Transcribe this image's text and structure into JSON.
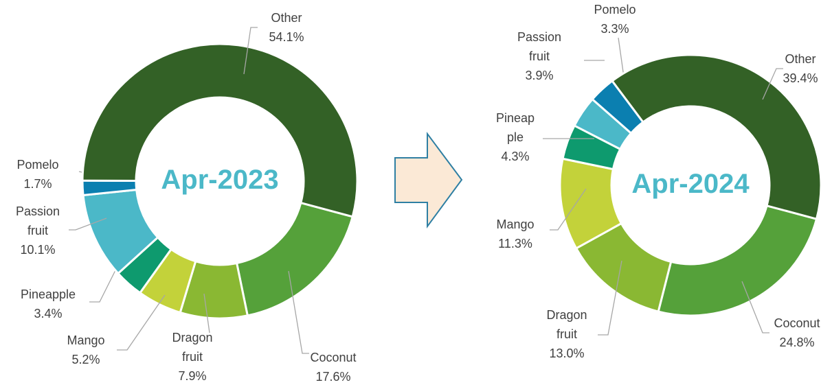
{
  "chart_data": [
    {
      "type": "donut",
      "title": "Apr-2023",
      "categories": [
        "Coconut",
        "Dragon fruit",
        "Mango",
        "Pineapple",
        "Passion fruit",
        "Pomelo",
        "Other"
      ],
      "values": [
        17.6,
        7.9,
        5.2,
        3.4,
        10.1,
        1.7,
        54.1
      ],
      "value_labels": [
        "17.6%",
        "7.9%",
        "5.2%",
        "3.4%",
        "10.1%",
        "1.7%",
        "54.1%"
      ],
      "colors": [
        "#55a13a",
        "#8ab833",
        "#c3d23a",
        "#0e9a6e",
        "#4bb8c8",
        "#0b7fb0",
        "#336126"
      ]
    },
    {
      "type": "donut",
      "title": "Apr-2024",
      "categories": [
        "Coconut",
        "Dragon fruit",
        "Mango",
        "Pineapple",
        "Passion fruit",
        "Pomelo",
        "Other"
      ],
      "values": [
        24.8,
        13.0,
        11.3,
        4.3,
        3.9,
        3.3,
        39.4
      ],
      "value_labels": [
        "24.8%",
        "13.0%",
        "11.3%",
        "4.3%",
        "3.9%",
        "3.3%",
        "39.4%"
      ],
      "colors": [
        "#55a13a",
        "#8ab833",
        "#c3d23a",
        "#0e9a6e",
        "#4bb8c8",
        "#0b7fb0",
        "#336126"
      ]
    }
  ]
}
